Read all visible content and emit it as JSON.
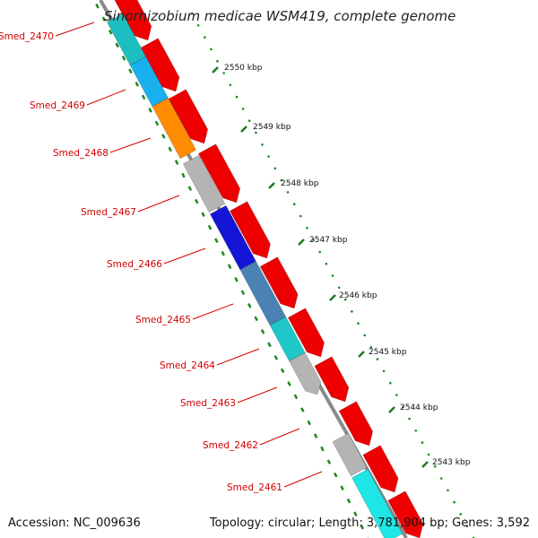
{
  "map": {
    "title": "Sinorhizobium medicae WSM419, complete genome",
    "accession": "Accession: NC_009636",
    "summary": "Topology: circular; Length: 3,781,904 bp; Genes: 3,592"
  },
  "ticks": [
    "2550 kbp",
    "2549 kbp",
    "2548 kbp",
    "2547 kbp",
    "2546 kbp",
    "2545 kbp",
    "2544 kbp",
    "2543 kbp"
  ],
  "genes": [
    {
      "name": "Smed_2470",
      "color": "#1bbfbf"
    },
    {
      "name": "Smed_2469",
      "color": "#19b0ee"
    },
    {
      "name": "Smed_2468",
      "color": "#ff8c00"
    },
    {
      "name": "Smed_2467",
      "color": "#b4b4b4"
    },
    {
      "name": "Smed_2466",
      "color": "#1515d8"
    },
    {
      "name": "Smed_2465",
      "color": "#4a82b4"
    },
    {
      "name": "Smed_2464",
      "color": "#1ec8c8"
    },
    {
      "name": "Smed_2463",
      "color": "#b4b4b4"
    },
    {
      "name": "Smed_2462",
      "color": "#b4b4b4"
    },
    {
      "name": "Smed_2461",
      "color": "#1ee6e6"
    }
  ],
  "colors": {
    "cds": "#ee0000",
    "backbone": "#8a8a8a",
    "gc_dots": "#1a8a1a",
    "tick": "#1a7a1a",
    "label": "#d40000"
  }
}
